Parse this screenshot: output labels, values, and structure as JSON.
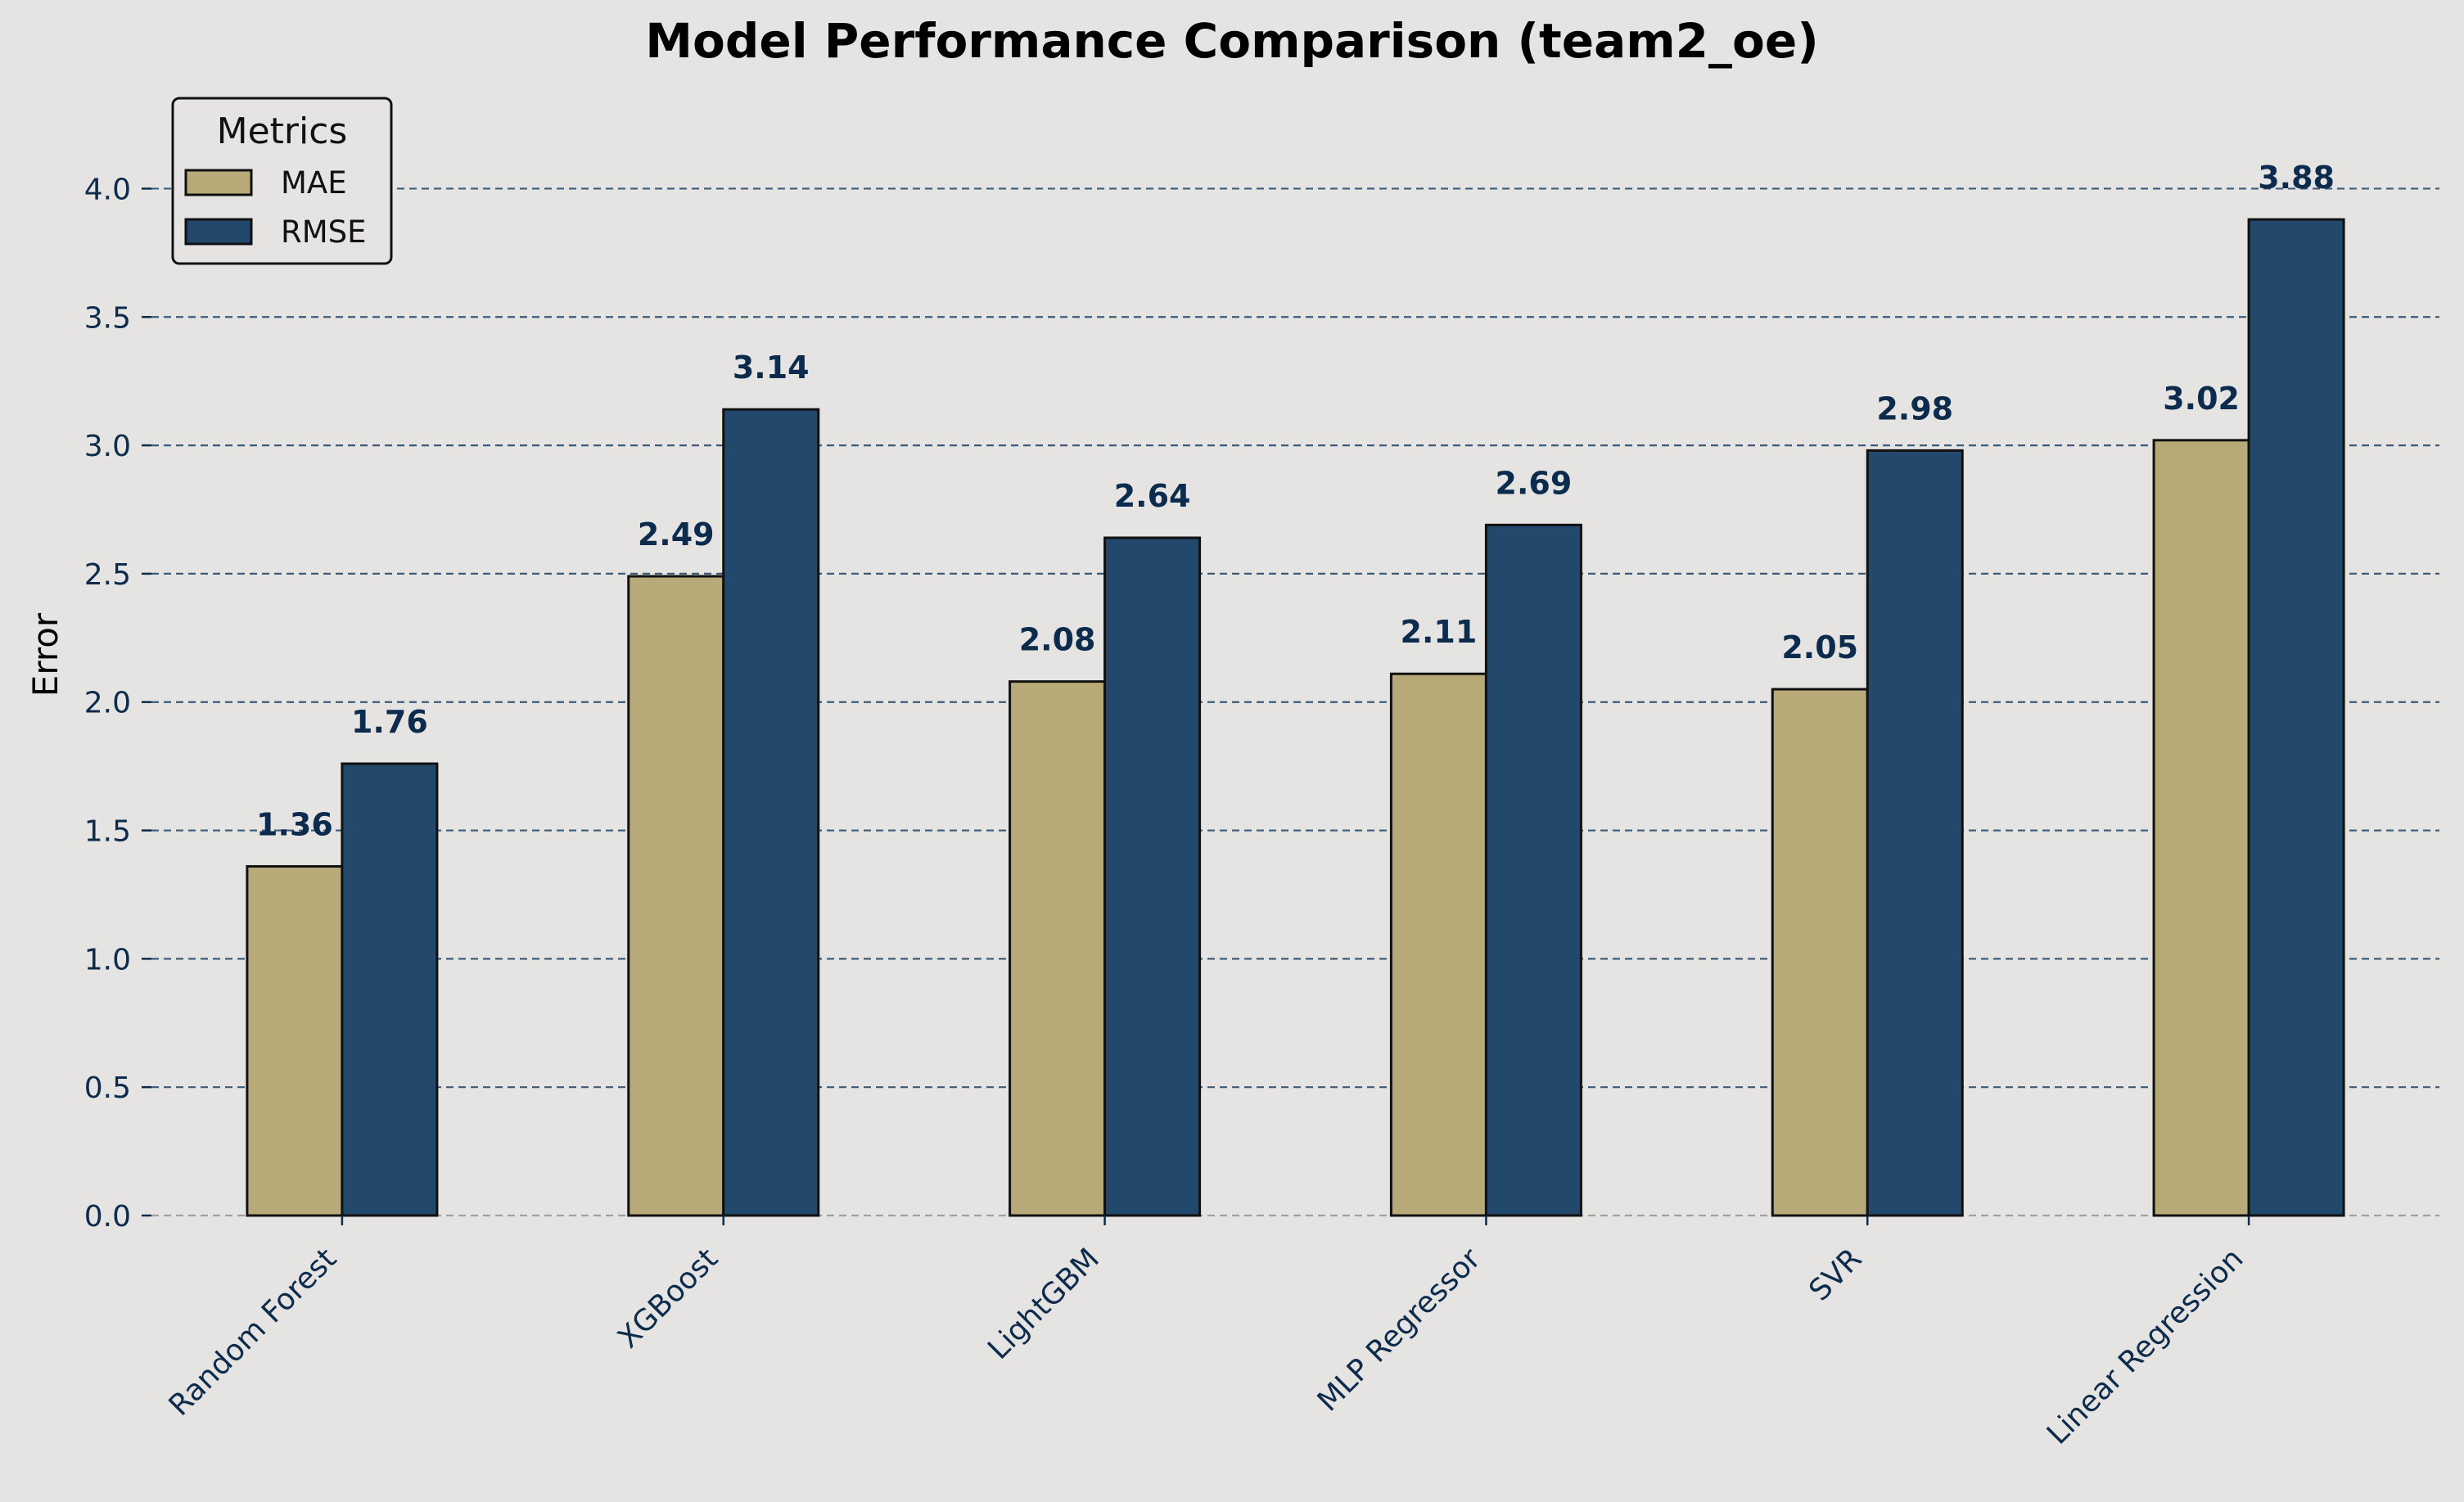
{
  "colors": {
    "background": "#e5e4e2",
    "mae": "#b8aa78",
    "rmse": "#22496b",
    "text": "#0d2b4c",
    "grid": "#1f4466",
    "edge": "#111111"
  },
  "legend": {
    "title": "Metrics",
    "placement": "upper-left"
  },
  "chart_data": {
    "type": "bar",
    "title": "Model Performance Comparison (team2_oe)",
    "xlabel": "",
    "ylabel": "Error",
    "ylim": [
      0,
      4.4
    ],
    "yticks": [
      "0.0",
      "0.5",
      "1.0",
      "1.5",
      "2.0",
      "2.5",
      "3.0",
      "3.5",
      "4.0"
    ],
    "grid": "horizontal dashed",
    "categories": [
      "Random Forest",
      "XGBoost",
      "LightGBM",
      "MLP Regressor",
      "SVR",
      "Linear Regression"
    ],
    "series": [
      {
        "name": "MAE",
        "values": [
          1.36,
          2.49,
          2.08,
          2.11,
          2.05,
          3.02
        ],
        "labels": [
          "1.36",
          "2.49",
          "2.08",
          "2.11",
          "2.05",
          "3.02"
        ]
      },
      {
        "name": "RMSE",
        "values": [
          1.76,
          3.14,
          2.64,
          2.69,
          2.98,
          3.88
        ],
        "labels": [
          "1.76",
          "3.14",
          "2.64",
          "2.69",
          "2.98",
          "3.88"
        ]
      }
    ]
  }
}
